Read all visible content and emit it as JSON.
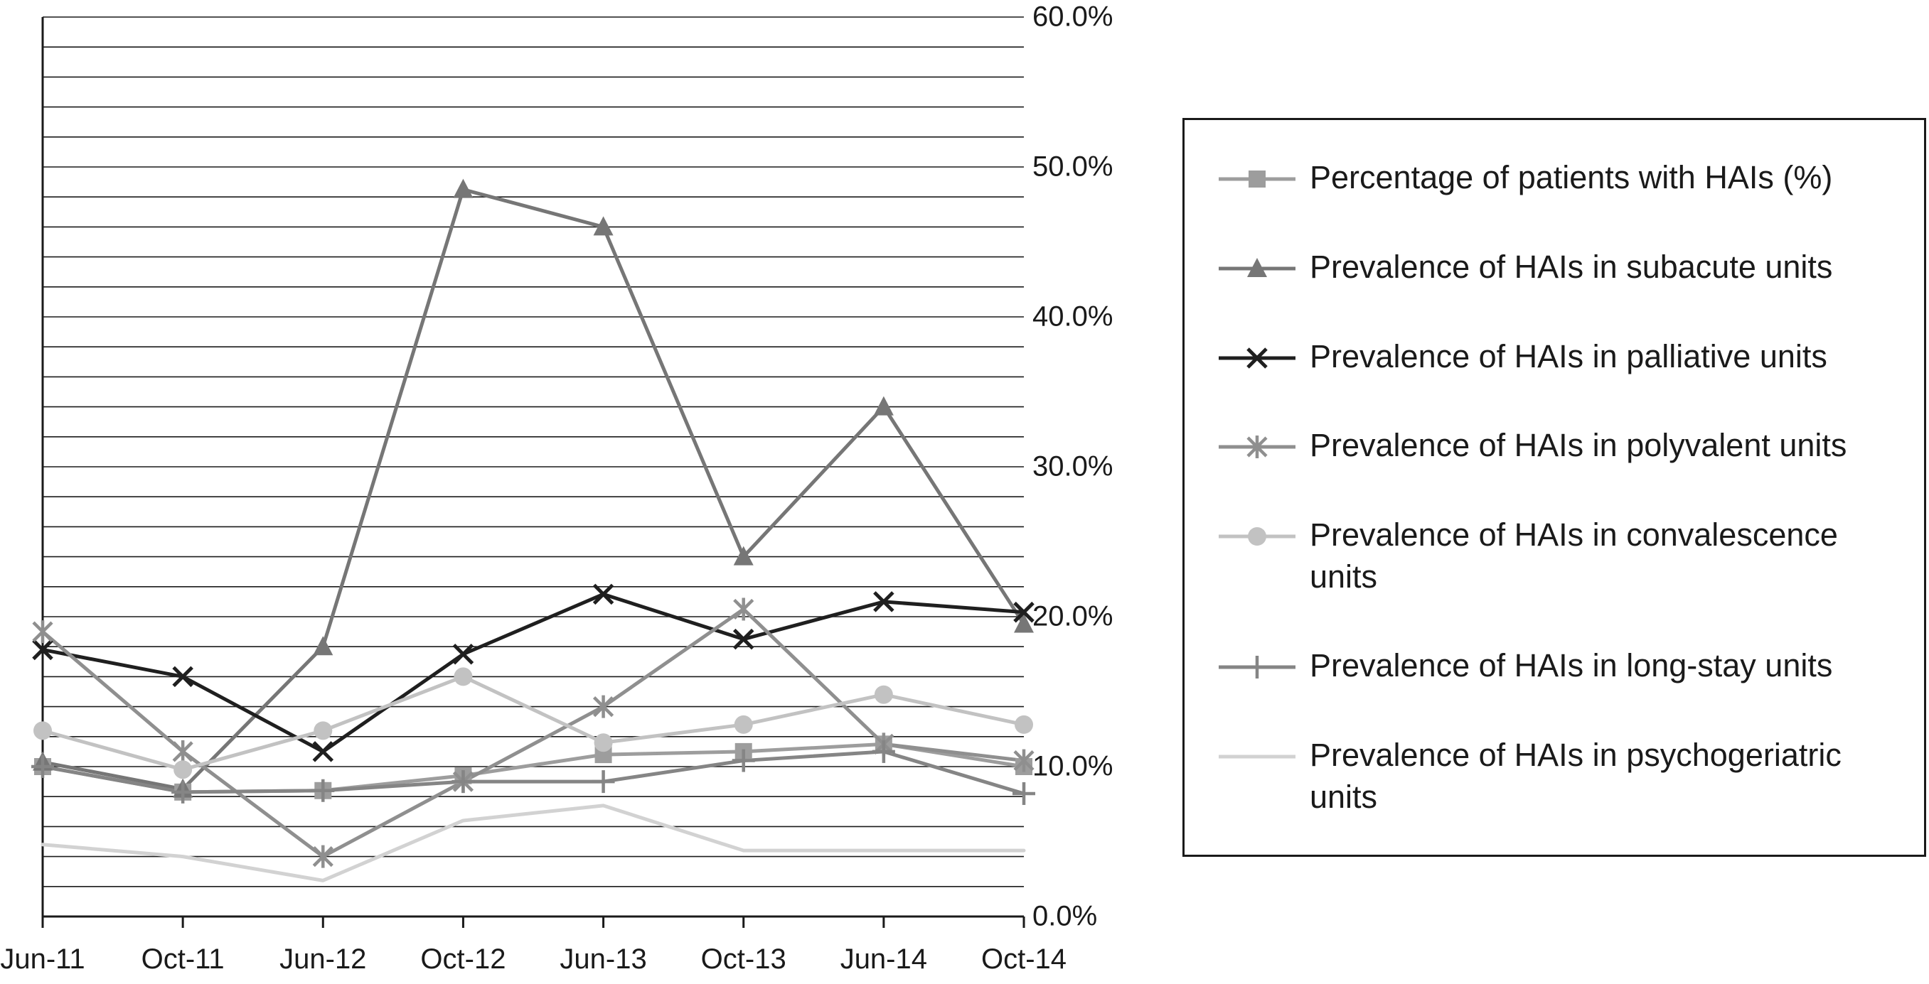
{
  "chart_data": {
    "type": "line",
    "title": "",
    "xlabel": "",
    "ylabel": "",
    "x": [
      "Jun-11",
      "Oct-11",
      "Jun-12",
      "Oct-12",
      "Jun-13",
      "Oct-13",
      "Jun-14",
      "Oct-14"
    ],
    "ylim": [
      0,
      60
    ],
    "gridline_step": 2,
    "grid": "horizontal",
    "y_tick_labels": [
      "0.0%",
      "10.0%",
      "20.0%",
      "30.0%",
      "40.0%",
      "50.0%",
      "60.0%"
    ],
    "legend_position": "right",
    "axis_color": "#1a1a1a",
    "series": [
      {
        "name": "Percentage of patients with HAIs (%)",
        "marker": "square",
        "color": "#9d9d9d",
        "values": [
          10,
          8.3,
          8.4,
          9.4,
          10.8,
          11,
          11.5,
          10
        ]
      },
      {
        "name": "Prevalence of HAIs in subacute units",
        "marker": "triangle",
        "color": "#767676",
        "values": [
          10.3,
          8.5,
          18,
          48.5,
          46,
          24,
          34,
          19.5
        ]
      },
      {
        "name": "Prevalence of HAIs in palliative units",
        "marker": "x",
        "color": "#1f1f1f",
        "values": [
          17.8,
          16,
          11,
          17.5,
          21.5,
          18.5,
          21,
          20.3
        ]
      },
      {
        "name": "Prevalence of HAIs in polyvalent units",
        "marker": "asterisk",
        "color": "#8f8f8f",
        "values": [
          19,
          11,
          4,
          9,
          14,
          20.5,
          11.5,
          10.4
        ]
      },
      {
        "name": "Prevalence of HAIs in convalescence units",
        "marker": "circle",
        "color": "#c2c2c2",
        "values": [
          12.4,
          9.8,
          12.4,
          16,
          11.6,
          12.8,
          14.8,
          12.8
        ]
      },
      {
        "name": "Prevalence of HAIs in long-stay units",
        "marker": "plus",
        "color": "#858585",
        "values": [
          10,
          8.3,
          8.4,
          9,
          9,
          10.4,
          11,
          8.2
        ]
      },
      {
        "name": "Prevalence of HAIs in psychogeriatric units",
        "marker": "none",
        "color": "#d2d2d2",
        "values": [
          4.8,
          4,
          2.4,
          6.4,
          7.4,
          4.4,
          4.4,
          4.4
        ]
      }
    ]
  }
}
